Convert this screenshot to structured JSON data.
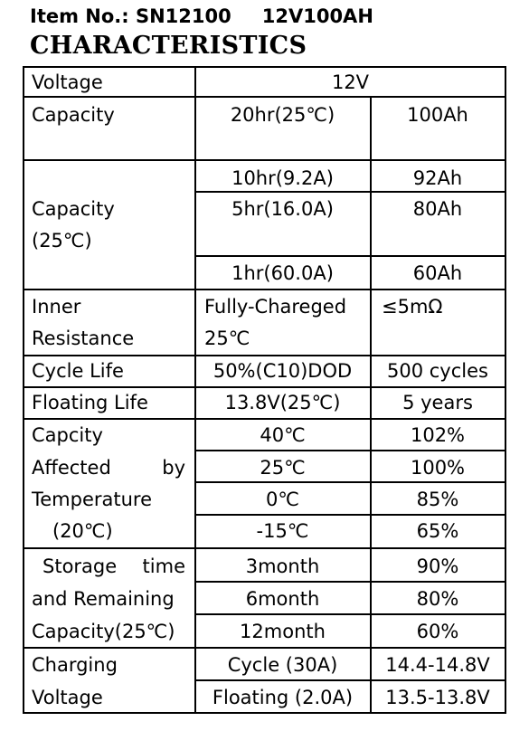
{
  "header": {
    "item_label": "Item No.: SN12100",
    "model": "12V100AH",
    "title": "CHARACTERISTICS"
  },
  "rows": {
    "voltage": {
      "label": "Voltage",
      "value": "12V"
    },
    "capacity": {
      "label": "Capacity",
      "condition": "20hr(25℃)",
      "value": "100Ah"
    },
    "capacity25": {
      "label_line1": "Capacity",
      "label_line2": "(25℃)",
      "items": [
        {
          "condition": "10hr(9.2A)",
          "value": "92Ah"
        },
        {
          "condition": "5hr(16.0A)",
          "value": "80Ah"
        },
        {
          "condition": "1hr(60.0A)",
          "value": "60Ah"
        }
      ]
    },
    "inner_resistance": {
      "label_line1": "Inner",
      "label_line2": "Resistance",
      "condition_line1": "Fully-Chareged",
      "condition_line2": "25℃",
      "value": "≤5mΩ"
    },
    "cycle_life": {
      "label": "Cycle Life",
      "condition": "50%(C10)DOD",
      "value": "500 cycles"
    },
    "floating_life": {
      "label": "Floating Life",
      "condition": "13.8V(25℃)",
      "value": "5 years"
    },
    "temperature": {
      "label_line1": "Capcity",
      "label_line2a": "Affected",
      "label_line2b": "by",
      "label_line3": "Temperature",
      "label_line4": "(20℃)",
      "items": [
        {
          "condition": "40℃",
          "value": "102%"
        },
        {
          "condition": "25℃",
          "value": "100%"
        },
        {
          "condition": "0℃",
          "value": "85%"
        },
        {
          "condition": "-15℃",
          "value": "65%"
        }
      ]
    },
    "storage": {
      "label_line1a": "Storage",
      "label_line1b": "time",
      "label_line2": "and Remaining",
      "label_line3": "Capacity(25℃)",
      "items": [
        {
          "condition": "3month",
          "value": "90%"
        },
        {
          "condition": "6month",
          "value": "80%"
        },
        {
          "condition": "12month",
          "value": "60%"
        }
      ]
    },
    "charging": {
      "label_line1": "Charging",
      "label_line2": "Voltage",
      "items": [
        {
          "condition": "Cycle (30A)",
          "value": "14.4-14.8V"
        },
        {
          "condition": "Floating (2.0A)",
          "value": "13.5-13.8V"
        }
      ]
    }
  }
}
